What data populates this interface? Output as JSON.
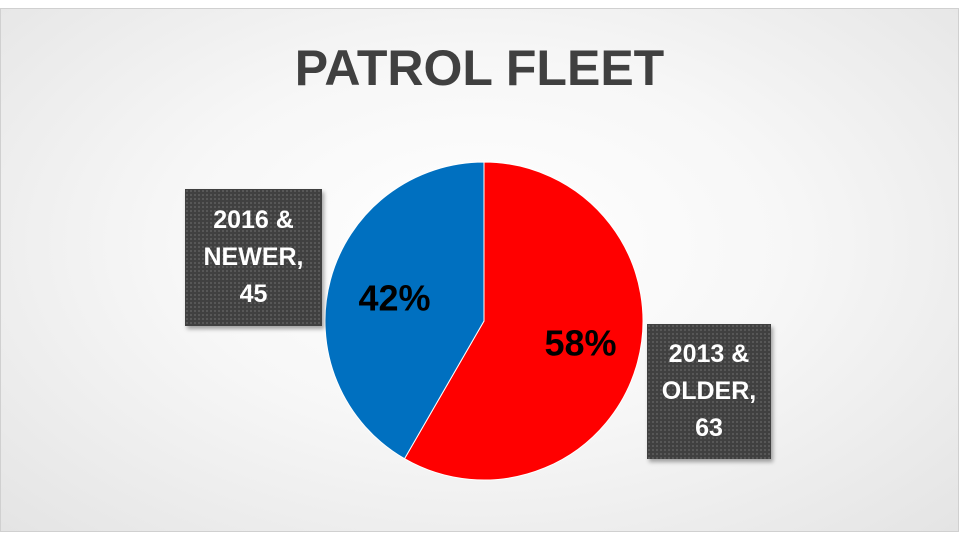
{
  "chart_data": {
    "type": "pie",
    "title": "PATROL FLEET",
    "slices": [
      {
        "label": "2013 & OLDER",
        "value": 63,
        "percent_label": "58%",
        "callout": "2013 &\nOLDER,\n63",
        "color": "#ff0000"
      },
      {
        "label": "2016 & NEWER",
        "value": 45,
        "percent_label": "42%",
        "callout": "2016 &\nNEWER,\n45",
        "color": "#0070c0"
      }
    ],
    "start": "12 o'clock",
    "direction": "clockwise",
    "legend": "none"
  }
}
